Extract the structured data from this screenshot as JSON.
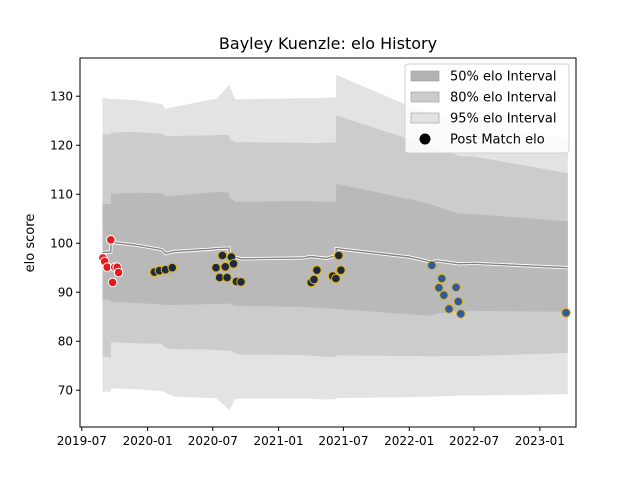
{
  "chart_data": {
    "type": "line",
    "title": "Bayley Kuenzle: elo History",
    "ylabel": "elo score",
    "xlabel": "",
    "xlim": [
      "2019-06-26",
      "2023-04-12"
    ],
    "ylim": [
      62.5,
      137.8
    ],
    "x_ticks": [
      "2019-07",
      "2020-01",
      "2020-07",
      "2021-01",
      "2021-07",
      "2022-01",
      "2022-07",
      "2023-01"
    ],
    "y_ticks": [
      70,
      80,
      90,
      100,
      110,
      120,
      130
    ],
    "legend_position": "top-right",
    "legend": [
      {
        "label": "50% elo Interval",
        "color": "#b3b3b3",
        "kind": "patch"
      },
      {
        "label": "80% elo Interval",
        "color": "#cccccc",
        "kind": "patch"
      },
      {
        "label": "95% elo Interval",
        "color": "#e3e3e3",
        "kind": "patch"
      },
      {
        "label": "Post Match elo",
        "color": "#000000",
        "kind": "marker"
      }
    ],
    "bands": {
      "x": [
        "2019-08-28",
        "2019-09-20",
        "2019-09-21",
        "2019-12-01",
        "2020-02-10",
        "2020-02-20",
        "2020-03-15",
        "2020-06-30",
        "2020-07-10",
        "2020-08-15",
        "2020-08-17",
        "2020-09-01",
        "2020-09-20",
        "2021-03-10",
        "2021-04-01",
        "2021-05-15",
        "2021-06-10",
        "2021-06-11",
        "2022-01-01",
        "2022-03-01",
        "2022-03-20",
        "2022-05-20",
        "2022-07-01",
        "2023-03-20"
      ],
      "center": [
        98.1,
        98.2,
        100.2,
        99.6,
        98.7,
        97.9,
        98.3,
        98.8,
        98.9,
        99.0,
        97.6,
        97.2,
        96.8,
        97.0,
        97.3,
        96.9,
        97.5,
        98.9,
        97.2,
        96.2,
        96.4,
        95.8,
        95.9,
        95.0
      ],
      "p50_low": [
        88.5,
        88.5,
        88.0,
        87.8,
        87.5,
        87.4,
        87.4,
        87.6,
        87.6,
        87.7,
        87.7,
        87.2,
        87.2,
        87.0,
        86.9,
        86.7,
        86.6,
        86.6,
        85.5,
        85.2,
        85.6,
        86.2,
        86.2,
        86.0
      ],
      "p50_high": [
        108.0,
        108.0,
        110.1,
        110.3,
        110.2,
        109.6,
        109.7,
        110.4,
        110.4,
        110.4,
        109.3,
        108.5,
        108.5,
        108.6,
        108.6,
        108.4,
        108.6,
        112.1,
        109.0,
        108.0,
        107.5,
        106.0,
        105.9,
        104.5
      ],
      "p80_low": [
        76.9,
        76.6,
        79.8,
        79.6,
        79.5,
        78.6,
        78.4,
        78.3,
        78.2,
        78.1,
        78.3,
        77.5,
        77.3,
        77.2,
        77.0,
        76.8,
        76.8,
        77.1,
        77.0,
        76.9,
        76.9,
        77.0,
        77.0,
        77.6
      ],
      "p80_high": [
        122.2,
        122.2,
        122.6,
        122.7,
        122.3,
        121.9,
        121.9,
        122.0,
        122.1,
        122.1,
        121.2,
        120.6,
        120.6,
        120.5,
        120.4,
        120.5,
        120.6,
        126.1,
        121.2,
        120.0,
        119.6,
        117.8,
        117.7,
        114.3
      ],
      "p95_low": [
        69.7,
        69.7,
        70.4,
        70.2,
        69.8,
        69.5,
        68.7,
        68.4,
        68.4,
        66.0,
        66.0,
        68.2,
        68.3,
        68.3,
        68.3,
        68.1,
        68.2,
        68.4,
        68.6,
        68.7,
        68.7,
        68.9,
        68.9,
        69.2
      ],
      "p95_high": [
        129.8,
        129.4,
        129.5,
        129.2,
        128.4,
        127.4,
        127.8,
        129.4,
        129.4,
        132.2,
        132.2,
        129.4,
        129.4,
        129.6,
        129.6,
        129.7,
        129.8,
        134.4,
        128.0,
        126.6,
        126.5,
        124.6,
        124.4,
        121.4
      ]
    },
    "series": [
      {
        "color": "#e41a1c",
        "edge": "#ffffff",
        "points": [
          [
            "2019-08-29",
            97.0
          ],
          [
            "2019-09-03",
            96.3
          ],
          [
            "2019-09-10",
            95.1
          ],
          [
            "2019-09-20",
            100.7
          ],
          [
            "2019-09-25",
            92.0
          ],
          [
            "2019-10-01",
            95.1
          ],
          [
            "2019-10-08",
            95.1
          ],
          [
            "2019-10-12",
            94.0
          ]
        ]
      },
      {
        "color": "#1b2a41",
        "edge": "#e6b400",
        "points": [
          [
            "2020-01-20",
            94.1
          ],
          [
            "2020-02-03",
            94.4
          ],
          [
            "2020-02-20",
            94.6
          ],
          [
            "2020-03-10",
            95.0
          ],
          [
            "2020-07-10",
            95.0
          ],
          [
            "2020-07-20",
            93.0
          ],
          [
            "2020-07-28",
            97.5
          ],
          [
            "2020-08-05",
            95.2
          ],
          [
            "2020-08-10",
            93.0
          ],
          [
            "2020-08-22",
            97.2
          ],
          [
            "2020-08-28",
            95.8
          ],
          [
            "2020-09-05",
            92.2
          ],
          [
            "2020-09-18",
            92.1
          ],
          [
            "2021-04-02",
            92.0
          ],
          [
            "2021-04-10",
            92.6
          ],
          [
            "2021-04-18",
            94.5
          ],
          [
            "2021-06-01",
            93.3
          ],
          [
            "2021-06-10",
            92.8
          ],
          [
            "2021-06-18",
            97.5
          ],
          [
            "2021-06-24",
            94.5
          ]
        ]
      },
      {
        "color": "#2d5aa0",
        "edge": "#e6b400",
        "points": [
          [
            "2022-03-05",
            95.5
          ],
          [
            "2022-03-25",
            90.9
          ],
          [
            "2022-04-02",
            92.8
          ],
          [
            "2022-04-08",
            89.4
          ],
          [
            "2022-04-22",
            86.6
          ],
          [
            "2022-05-12",
            91.0
          ],
          [
            "2022-05-18",
            88.1
          ],
          [
            "2022-05-25",
            85.6
          ],
          [
            "2023-03-15",
            85.8
          ]
        ]
      }
    ]
  }
}
